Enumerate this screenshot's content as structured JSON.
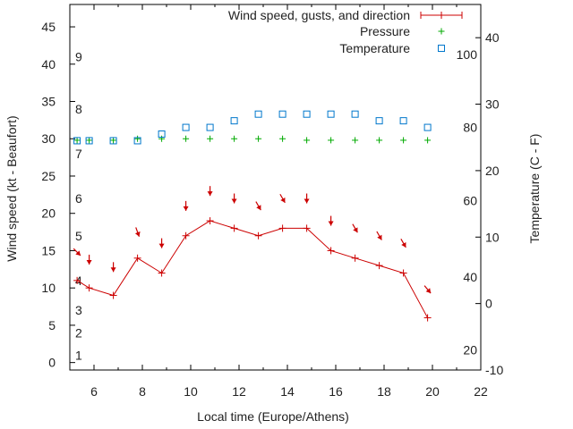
{
  "chart_data": {
    "type": "line",
    "xlabel": "Local time (Europe/Athens)",
    "ylabel": "Wind speed (kt - Beaufort)",
    "y2label": "Temperature (C - F)",
    "xlim": [
      5,
      22
    ],
    "ylim": [
      -1,
      48
    ],
    "y2lim": [
      -10,
      45
    ],
    "x_ticks": [
      6,
      8,
      10,
      12,
      14,
      16,
      18,
      20,
      22
    ],
    "y_ticks": [
      0,
      5,
      10,
      15,
      20,
      25,
      30,
      35,
      40,
      45
    ],
    "y2_ticks": [
      -10,
      0,
      10,
      20,
      30,
      40
    ],
    "grid": false,
    "legend_position": "top-right",
    "series": [
      {
        "name": "Wind speed, gusts, and direction",
        "color": "#cc0000",
        "x": [
          5.3,
          5.8,
          6.8,
          7.8,
          8.8,
          9.8,
          10.8,
          11.8,
          12.8,
          13.8,
          14.8,
          15.8,
          16.8,
          17.8,
          18.8,
          19.8
        ],
        "y": [
          11,
          10,
          9,
          14,
          12,
          17,
          19,
          18,
          17,
          18,
          18,
          15,
          14,
          13,
          12,
          6
        ],
        "direction_arrows": [
          {
            "x": 5.3,
            "y": 14.8,
            "dir_deg": 315
          },
          {
            "x": 5.8,
            "y": 13.8,
            "dir_deg": 0
          },
          {
            "x": 6.8,
            "y": 12.8,
            "dir_deg": 0
          },
          {
            "x": 7.8,
            "y": 17.5,
            "dir_deg": 340
          },
          {
            "x": 8.8,
            "y": 16.0,
            "dir_deg": 0
          },
          {
            "x": 9.8,
            "y": 21.0,
            "dir_deg": 0
          },
          {
            "x": 10.8,
            "y": 23.0,
            "dir_deg": 0
          },
          {
            "x": 11.8,
            "y": 22.0,
            "dir_deg": 0
          },
          {
            "x": 12.8,
            "y": 21.0,
            "dir_deg": 330
          },
          {
            "x": 13.8,
            "y": 22.0,
            "dir_deg": 330
          },
          {
            "x": 14.8,
            "y": 22.0,
            "dir_deg": 0
          },
          {
            "x": 15.8,
            "y": 19.0,
            "dir_deg": 0
          },
          {
            "x": 16.8,
            "y": 18.0,
            "dir_deg": 330
          },
          {
            "x": 17.8,
            "y": 17.0,
            "dir_deg": 330
          },
          {
            "x": 18.8,
            "y": 16.0,
            "dir_deg": 330
          },
          {
            "x": 19.8,
            "y": 9.8,
            "dir_deg": 320
          }
        ]
      },
      {
        "name": "Pressure",
        "color": "#00aa00",
        "x": [
          5.3,
          5.8,
          6.8,
          7.8,
          8.8,
          9.8,
          10.8,
          11.8,
          12.8,
          13.8,
          14.8,
          15.8,
          16.8,
          17.8,
          18.8,
          19.8
        ],
        "y": [
          29.8,
          29.8,
          29.8,
          30.0,
          30.0,
          30.0,
          30.0,
          30.0,
          30.0,
          30.0,
          29.8,
          29.8,
          29.8,
          29.8,
          29.8,
          29.8
        ]
      },
      {
        "name": "Temperature",
        "color": "#0077cc",
        "axis": "y2",
        "x": [
          5.3,
          5.8,
          6.8,
          7.8,
          8.8,
          9.8,
          10.8,
          11.8,
          12.8,
          13.8,
          14.8,
          15.8,
          16.8,
          17.8,
          18.8,
          19.8
        ],
        "y": [
          24.5,
          24.5,
          24.5,
          24.5,
          25.5,
          26.5,
          26.5,
          27.5,
          28.5,
          28.5,
          28.5,
          28.5,
          28.5,
          27.5,
          27.5,
          26.5
        ]
      }
    ],
    "beaufort_labels": [
      {
        "text": "1",
        "at": 1
      },
      {
        "text": "2",
        "at": 4
      },
      {
        "text": "3",
        "at": 7
      },
      {
        "text": "4",
        "at": 11
      },
      {
        "text": "5",
        "at": 17
      },
      {
        "text": "6",
        "at": 22
      },
      {
        "text": "7",
        "at": 28
      },
      {
        "text": "8",
        "at": 34
      },
      {
        "text": "9",
        "at": 41
      }
    ],
    "fahrenheit_labels": [
      {
        "text": "20",
        "at": -7
      },
      {
        "text": "40",
        "at": 4
      },
      {
        "text": "60",
        "at": 15.5
      },
      {
        "text": "80",
        "at": 26.5
      },
      {
        "text": "100",
        "at": 37.5
      }
    ]
  }
}
